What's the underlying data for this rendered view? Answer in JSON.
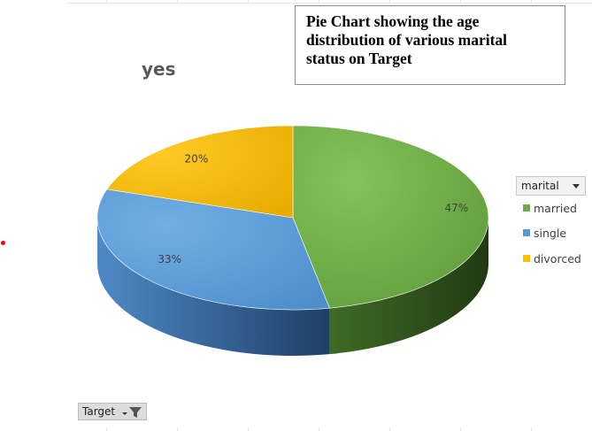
{
  "title_box": {
    "line1": "Pie Chart showing the age",
    "line2": "distribution of various marital",
    "line3": "status on Target"
  },
  "chart_data": {
    "type": "pie",
    "title": "yes",
    "categories": [
      "married",
      "single",
      "divorced"
    ],
    "values": [
      47,
      33,
      20
    ],
    "labels": [
      "47%",
      "33%",
      "20%"
    ],
    "colors": [
      "#70ad47",
      "#5b9bd5",
      "#ffc000"
    ],
    "legend_placement": "right",
    "legend_title": "marital",
    "style": "3d"
  },
  "filter_button": {
    "label": "Target"
  },
  "icons": {
    "legend_dropdown": "chevron-down-icon",
    "filter": "filter-icon"
  }
}
